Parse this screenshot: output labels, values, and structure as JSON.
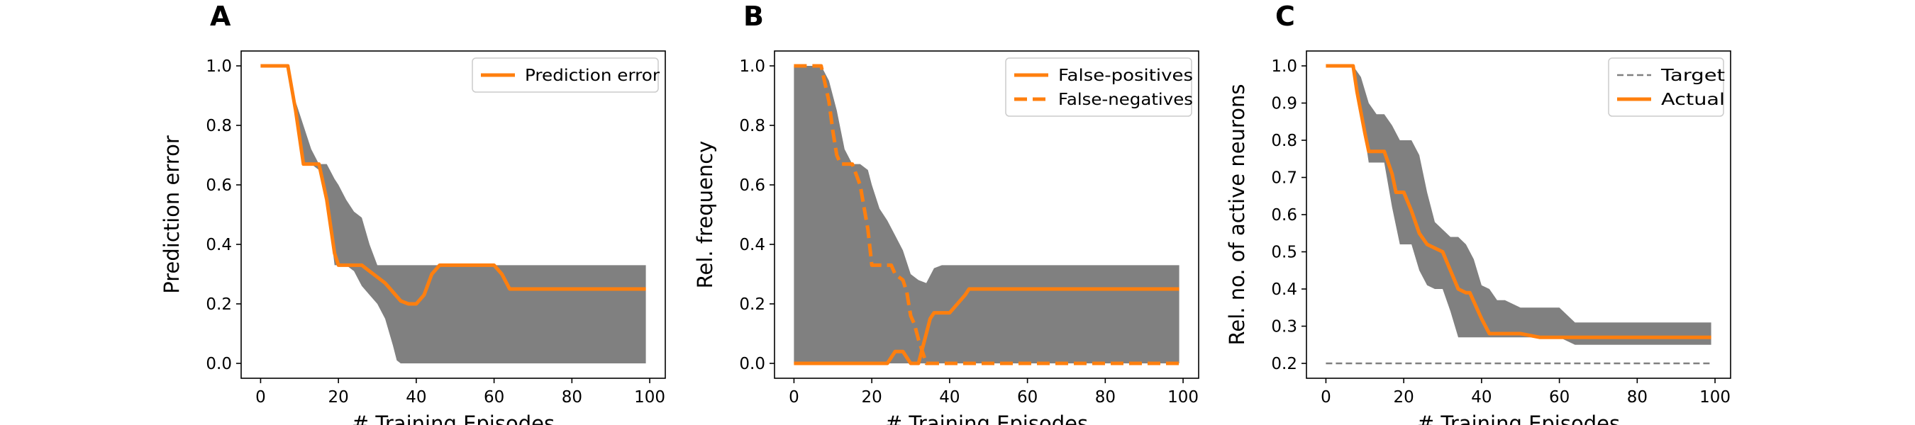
{
  "colors": {
    "actual": "#ff7f0e",
    "band": "#808080",
    "target": "#808080",
    "axes": "#000000",
    "legend_border": "#cccccc"
  },
  "chart_data": [
    {
      "type": "line",
      "panel_label": "A",
      "xlabel": "# Training Episodes",
      "ylabel": "Prediction error",
      "xlim": [
        -5,
        104
      ],
      "ylim": [
        -0.05,
        1.05
      ],
      "xticks": [
        0,
        20,
        40,
        60,
        80,
        100
      ],
      "yticks": [
        0.0,
        0.2,
        0.4,
        0.6,
        0.8,
        1.0
      ],
      "ytick_decimals": 1,
      "legend_position": "top-right",
      "band": {
        "x": [
          0,
          7,
          9,
          11,
          13,
          15,
          17,
          19,
          20,
          22,
          24,
          26,
          28,
          30,
          32,
          34,
          35,
          36,
          38,
          40,
          45,
          50,
          55,
          60,
          65,
          70,
          80,
          90,
          99
        ],
        "upper": [
          1.0,
          1.0,
          0.88,
          0.8,
          0.72,
          0.67,
          0.67,
          0.62,
          0.6,
          0.55,
          0.51,
          0.49,
          0.4,
          0.33,
          0.33,
          0.33,
          0.33,
          0.33,
          0.33,
          0.33,
          0.33,
          0.33,
          0.33,
          0.33,
          0.33,
          0.33,
          0.33,
          0.33,
          0.33
        ],
        "lower": [
          1.0,
          1.0,
          0.83,
          0.67,
          0.67,
          0.65,
          0.55,
          0.33,
          0.33,
          0.33,
          0.31,
          0.26,
          0.23,
          0.2,
          0.15,
          0.06,
          0.01,
          0.0,
          0.0,
          0.0,
          0.0,
          0.0,
          0.0,
          0.0,
          0.0,
          0.0,
          0.0,
          0.0,
          0.0
        ]
      },
      "series": [
        {
          "name": "Prediction error",
          "style": "solid",
          "x": [
            0,
            7,
            9,
            11,
            13,
            15,
            17,
            19,
            20,
            22,
            24,
            26,
            28,
            30,
            32,
            34,
            36,
            38,
            40,
            42,
            44,
            46,
            50,
            55,
            60,
            62,
            64,
            70,
            80,
            90,
            99
          ],
          "y": [
            1.0,
            1.0,
            0.85,
            0.67,
            0.67,
            0.67,
            0.55,
            0.37,
            0.33,
            0.33,
            0.33,
            0.33,
            0.31,
            0.29,
            0.27,
            0.24,
            0.21,
            0.2,
            0.2,
            0.23,
            0.3,
            0.33,
            0.33,
            0.33,
            0.33,
            0.3,
            0.25,
            0.25,
            0.25,
            0.25,
            0.25
          ]
        }
      ]
    },
    {
      "type": "line",
      "panel_label": "B",
      "xlabel": "# Training Episodes",
      "ylabel": "Rel. frequency",
      "xlim": [
        -5,
        104
      ],
      "ylim": [
        -0.05,
        1.05
      ],
      "xticks": [
        0,
        20,
        40,
        60,
        80,
        100
      ],
      "yticks": [
        0.0,
        0.2,
        0.4,
        0.6,
        0.8,
        1.0
      ],
      "ytick_decimals": 1,
      "legend_position": "top-right",
      "band": {
        "x": [
          0,
          7,
          9,
          11,
          13,
          15,
          17,
          19,
          20,
          22,
          24,
          26,
          28,
          30,
          32,
          34,
          36,
          38,
          40,
          45,
          50,
          60,
          70,
          80,
          90,
          99
        ],
        "upper": [
          1.0,
          1.0,
          0.95,
          0.85,
          0.72,
          0.67,
          0.67,
          0.65,
          0.6,
          0.52,
          0.48,
          0.43,
          0.38,
          0.3,
          0.28,
          0.27,
          0.32,
          0.33,
          0.33,
          0.33,
          0.33,
          0.33,
          0.33,
          0.33,
          0.33,
          0.33
        ],
        "lower": [
          0.0,
          0.0,
          0.0,
          0.0,
          0.0,
          0.0,
          0.0,
          0.0,
          0.0,
          0.0,
          0.0,
          0.0,
          0.0,
          0.0,
          0.0,
          0.0,
          0.0,
          0.0,
          0.0,
          0.0,
          0.0,
          0.0,
          0.0,
          0.0,
          0.0,
          0.0
        ]
      },
      "series": [
        {
          "name": "False-positives",
          "style": "solid",
          "x": [
            0,
            10,
            20,
            24,
            26,
            28,
            29,
            30,
            31,
            32,
            33,
            34,
            35,
            36,
            40,
            44,
            45,
            50,
            60,
            70,
            80,
            90,
            99
          ],
          "y": [
            0.0,
            0.0,
            0.0,
            0.0,
            0.04,
            0.04,
            0.02,
            0.0,
            0.0,
            0.0,
            0.05,
            0.1,
            0.15,
            0.17,
            0.17,
            0.23,
            0.25,
            0.25,
            0.25,
            0.25,
            0.25,
            0.25,
            0.25
          ]
        },
        {
          "name": "False-negatives",
          "style": "dashed",
          "x": [
            0,
            7,
            9,
            10,
            11,
            12,
            13,
            15,
            17,
            19,
            20,
            22,
            24,
            25,
            26,
            28,
            29,
            30,
            31,
            32,
            33,
            34,
            35,
            36,
            40,
            50,
            60,
            70,
            80,
            90,
            99
          ],
          "y": [
            1.0,
            1.0,
            0.88,
            0.78,
            0.7,
            0.67,
            0.67,
            0.67,
            0.6,
            0.45,
            0.33,
            0.33,
            0.33,
            0.33,
            0.3,
            0.28,
            0.24,
            0.16,
            0.13,
            0.08,
            0.04,
            0.0,
            0.0,
            0.0,
            0.0,
            0.0,
            0.0,
            0.0,
            0.0,
            0.0,
            0.0
          ]
        }
      ]
    },
    {
      "type": "line",
      "panel_label": "C",
      "xlabel": "# Training Episodes",
      "ylabel": "Rel. no. of active neurons",
      "xlim": [
        -5,
        104
      ],
      "ylim": [
        0.16,
        1.04
      ],
      "xticks": [
        0,
        20,
        40,
        60,
        80,
        100
      ],
      "yticks": [
        0.2,
        0.3,
        0.4,
        0.5,
        0.6,
        0.7,
        0.8,
        0.9,
        1.0
      ],
      "ytick_decimals": 1,
      "legend_position": "top-right",
      "band": {
        "x": [
          0,
          7,
          9,
          11,
          13,
          15,
          17,
          19,
          20,
          22,
          24,
          26,
          28,
          30,
          32,
          34,
          36,
          38,
          40,
          42,
          44,
          46,
          50,
          55,
          60,
          64,
          70,
          80,
          90,
          99
        ],
        "upper": [
          1.0,
          1.0,
          0.97,
          0.9,
          0.87,
          0.87,
          0.84,
          0.8,
          0.8,
          0.8,
          0.76,
          0.66,
          0.58,
          0.56,
          0.54,
          0.54,
          0.52,
          0.48,
          0.41,
          0.4,
          0.37,
          0.37,
          0.35,
          0.35,
          0.35,
          0.31,
          0.31,
          0.31,
          0.31,
          0.31
        ],
        "lower": [
          1.0,
          1.0,
          0.88,
          0.74,
          0.74,
          0.74,
          0.62,
          0.52,
          0.52,
          0.52,
          0.45,
          0.41,
          0.4,
          0.4,
          0.34,
          0.27,
          0.27,
          0.27,
          0.27,
          0.27,
          0.27,
          0.27,
          0.27,
          0.27,
          0.27,
          0.25,
          0.25,
          0.25,
          0.25,
          0.25
        ]
      },
      "series": [
        {
          "name": "Target",
          "style": "dashed-thin",
          "x": [
            0,
            99
          ],
          "y": [
            0.2,
            0.2
          ]
        },
        {
          "name": "Actual",
          "style": "solid",
          "x": [
            0,
            7,
            8,
            10,
            11,
            13,
            15,
            17,
            18,
            20,
            22,
            24,
            26,
            28,
            30,
            32,
            34,
            36,
            37,
            40,
            42,
            44,
            46,
            50,
            55,
            60,
            64,
            70,
            80,
            90,
            99
          ],
          "y": [
            1.0,
            1.0,
            0.93,
            0.82,
            0.77,
            0.77,
            0.77,
            0.71,
            0.66,
            0.66,
            0.61,
            0.55,
            0.52,
            0.51,
            0.5,
            0.45,
            0.4,
            0.39,
            0.39,
            0.32,
            0.28,
            0.28,
            0.28,
            0.28,
            0.27,
            0.27,
            0.27,
            0.27,
            0.27,
            0.27,
            0.27
          ]
        }
      ]
    }
  ]
}
